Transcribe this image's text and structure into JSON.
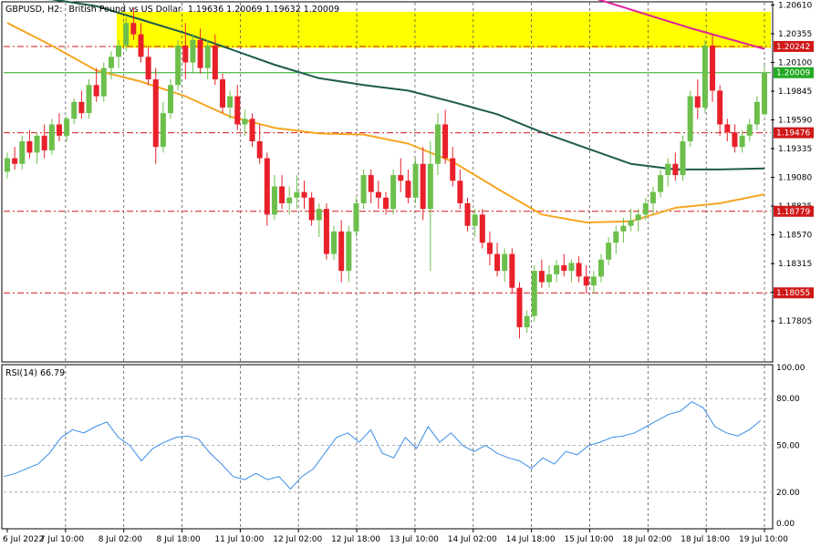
{
  "header": {
    "symbol": "GBPUSD, H2:",
    "description": "British Pound vs US Dollar",
    "ohlc": "1.19636 1.20069 1.19632 1.20009"
  },
  "rsi": {
    "label": "RSI(14) 66.79",
    "level_labels": [
      "100.00",
      "80.00",
      "50.00",
      "20.00",
      "0.00"
    ]
  },
  "colors": {
    "bull": "#6cbf4b",
    "bear": "#e8202a",
    "ma_slow": "#1f5a4e",
    "ma_fast": "#f5a623",
    "ma_top": "#e0209a",
    "zone": "#ffff00",
    "rsi": "#3a8ee6",
    "level_line": "#d01818",
    "price_line": "#22aa22"
  },
  "chart_data": [
    {
      "type": "candlestick",
      "title": "GBPUSD, H2: British Pound vs US Dollar",
      "ylim": [
        1.1745,
        1.2063
      ],
      "y_ticks": [
        "1.20610",
        "1.20355",
        "1.20100",
        "1.19845",
        "1.19590",
        "1.19335",
        "1.19080",
        "1.18825",
        "1.18570",
        "1.18315",
        "1.18060",
        "1.17805"
      ],
      "x_labels": [
        "6 Jul 2022",
        "7 Jul 10:00",
        "8 Jul 02:00",
        "8 Jul 18:00",
        "11 Jul 10:00",
        "12 Jul 02:00",
        "12 Jul 18:00",
        "13 Jul 10:00",
        "14 Jul 02:00",
        "14 Jul 18:00",
        "15 Jul 10:00",
        "18 Jul 02:00",
        "18 Jul 18:00",
        "19 Jul 10:00"
      ],
      "horizontal_levels": [
        {
          "value": 1.20242,
          "label": "1.20242"
        },
        {
          "value": 1.19476,
          "label": "1.19476"
        },
        {
          "value": 1.18779,
          "label": "1.18779"
        },
        {
          "value": 1.18055,
          "label": "1.18055"
        }
      ],
      "current_price": {
        "value": 1.20009,
        "label": "1.20009"
      },
      "resistance_zone": [
        1.2023,
        1.2055
      ],
      "candles": [
        [
          1.1913,
          1.193,
          1.1907,
          1.1925
        ],
        [
          1.1925,
          1.1935,
          1.1915,
          1.192
        ],
        [
          1.192,
          1.1945,
          1.1915,
          1.194
        ],
        [
          1.194,
          1.195,
          1.1925,
          1.193
        ],
        [
          1.193,
          1.1948,
          1.192,
          1.1945
        ],
        [
          1.1945,
          1.1955,
          1.1925,
          1.1932
        ],
        [
          1.1932,
          1.196,
          1.1928,
          1.1955
        ],
        [
          1.1955,
          1.1965,
          1.194,
          1.1945
        ],
        [
          1.1945,
          1.1962,
          1.194,
          1.196
        ],
        [
          1.196,
          1.1978,
          1.1955,
          1.1975
        ],
        [
          1.1975,
          1.1985,
          1.196,
          1.1965
        ],
        [
          1.1965,
          1.1995,
          1.196,
          1.199
        ],
        [
          1.199,
          1.2005,
          1.1975,
          1.198
        ],
        [
          1.198,
          1.201,
          1.1975,
          1.2005
        ],
        [
          1.2005,
          1.202,
          1.1995,
          1.2015
        ],
        [
          1.2015,
          1.203,
          1.2005,
          1.2025
        ],
        [
          1.2025,
          1.205,
          1.202,
          1.2045
        ],
        [
          1.2045,
          1.2058,
          1.203,
          1.2035
        ],
        [
          1.2035,
          1.2045,
          1.201,
          1.2015
        ],
        [
          1.2015,
          1.2025,
          1.199,
          1.1995
        ],
        [
          1.1995,
          1.2005,
          1.192,
          1.1935
        ],
        [
          1.1935,
          1.1975,
          1.193,
          1.1965
        ],
        [
          1.1965,
          1.1995,
          1.196,
          1.199
        ],
        [
          1.199,
          1.203,
          1.1985,
          1.2025
        ],
        [
          1.2025,
          1.2045,
          1.1995,
          1.201
        ],
        [
          1.201,
          1.2035,
          1.2,
          1.203
        ],
        [
          1.203,
          1.204,
          1.2,
          1.2005
        ],
        [
          1.2005,
          1.203,
          1.1995,
          1.2025
        ],
        [
          1.2025,
          1.2035,
          1.199,
          1.1995
        ],
        [
          1.1995,
          1.2,
          1.1965,
          1.197
        ],
        [
          1.197,
          1.1985,
          1.196,
          1.198
        ],
        [
          1.198,
          1.199,
          1.195,
          1.1955
        ],
        [
          1.1955,
          1.1968,
          1.1945,
          1.196
        ],
        [
          1.196,
          1.1965,
          1.1935,
          1.194
        ],
        [
          1.194,
          1.1955,
          1.192,
          1.1925
        ],
        [
          1.1925,
          1.193,
          1.1865,
          1.1875
        ],
        [
          1.1875,
          1.191,
          1.187,
          1.19
        ],
        [
          1.19,
          1.191,
          1.188,
          1.1885
        ],
        [
          1.1885,
          1.19,
          1.1875,
          1.189
        ],
        [
          1.189,
          1.191,
          1.188,
          1.1895
        ],
        [
          1.1895,
          1.1905,
          1.188,
          1.189
        ],
        [
          1.189,
          1.1895,
          1.1865,
          1.187
        ],
        [
          1.187,
          1.1885,
          1.1855,
          1.188
        ],
        [
          1.188,
          1.1885,
          1.1835,
          1.184
        ],
        [
          1.184,
          1.1865,
          1.1835,
          1.186
        ],
        [
          1.186,
          1.187,
          1.1815,
          1.1825
        ],
        [
          1.1825,
          1.1865,
          1.1815,
          1.186
        ],
        [
          1.186,
          1.189,
          1.1855,
          1.1885
        ],
        [
          1.1885,
          1.1915,
          1.188,
          1.191
        ],
        [
          1.191,
          1.1915,
          1.1885,
          1.1895
        ],
        [
          1.1895,
          1.1905,
          1.188,
          1.189
        ],
        [
          1.189,
          1.1895,
          1.1875,
          1.188
        ],
        [
          1.188,
          1.1915,
          1.1875,
          1.191
        ],
        [
          1.191,
          1.1925,
          1.1895,
          1.1905
        ],
        [
          1.1905,
          1.1915,
          1.1885,
          1.189
        ],
        [
          1.189,
          1.1925,
          1.1885,
          1.192
        ],
        [
          1.192,
          1.1935,
          1.187,
          1.188
        ],
        [
          1.188,
          1.194,
          1.1825,
          1.192
        ],
        [
          1.192,
          1.1965,
          1.191,
          1.1955
        ],
        [
          1.1955,
          1.1968,
          1.192,
          1.1925
        ],
        [
          1.1925,
          1.1935,
          1.19,
          1.1905
        ],
        [
          1.1905,
          1.1915,
          1.188,
          1.1885
        ],
        [
          1.1885,
          1.189,
          1.186,
          1.1865
        ],
        [
          1.1865,
          1.188,
          1.1855,
          1.1875
        ],
        [
          1.1875,
          1.188,
          1.1845,
          1.185
        ],
        [
          1.185,
          1.186,
          1.183,
          1.184
        ],
        [
          1.184,
          1.185,
          1.182,
          1.1825
        ],
        [
          1.1825,
          1.1845,
          1.1815,
          1.184
        ],
        [
          1.184,
          1.1845,
          1.1805,
          1.181
        ],
        [
          1.181,
          1.1815,
          1.1765,
          1.1775
        ],
        [
          1.1775,
          1.179,
          1.177,
          1.1785
        ],
        [
          1.1785,
          1.183,
          1.178,
          1.1825
        ],
        [
          1.1825,
          1.1835,
          1.181,
          1.1815
        ],
        [
          1.1815,
          1.183,
          1.181,
          1.1822
        ],
        [
          1.1822,
          1.1835,
          1.1815,
          1.183
        ],
        [
          1.183,
          1.184,
          1.182,
          1.1825
        ],
        [
          1.1825,
          1.1835,
          1.1815,
          1.1832
        ],
        [
          1.1832,
          1.1838,
          1.1815,
          1.182
        ],
        [
          1.182,
          1.183,
          1.1805,
          1.1812
        ],
        [
          1.1812,
          1.1825,
          1.1805,
          1.182
        ],
        [
          1.182,
          1.184,
          1.1815,
          1.1835
        ],
        [
          1.1835,
          1.1855,
          1.183,
          1.185
        ],
        [
          1.185,
          1.1865,
          1.184,
          1.186
        ],
        [
          1.186,
          1.1872,
          1.185,
          1.1865
        ],
        [
          1.1865,
          1.188,
          1.186,
          1.187
        ],
        [
          1.187,
          1.188,
          1.186,
          1.1875
        ],
        [
          1.1875,
          1.189,
          1.187,
          1.1885
        ],
        [
          1.1885,
          1.19,
          1.1875,
          1.1895
        ],
        [
          1.1895,
          1.1915,
          1.189,
          1.191
        ],
        [
          1.191,
          1.1925,
          1.19,
          1.192
        ],
        [
          1.192,
          1.193,
          1.1905,
          1.191
        ],
        [
          1.191,
          1.1945,
          1.1905,
          1.194
        ],
        [
          1.194,
          1.1985,
          1.1935,
          1.198
        ],
        [
          1.198,
          1.1995,
          1.196,
          1.197
        ],
        [
          1.197,
          1.203,
          1.1965,
          1.2025
        ],
        [
          1.2025,
          1.2035,
          1.1975,
          1.1985
        ],
        [
          1.1985,
          1.199,
          1.1945,
          1.1955
        ],
        [
          1.1955,
          1.196,
          1.194,
          1.1948
        ],
        [
          1.1948,
          1.1955,
          1.193,
          1.1935
        ],
        [
          1.1935,
          1.195,
          1.193,
          1.1945
        ],
        [
          1.1945,
          1.196,
          1.194,
          1.1955
        ],
        [
          1.1955,
          1.198,
          1.195,
          1.1975
        ],
        [
          1.1964,
          1.2007,
          1.1963,
          1.2001
        ]
      ],
      "ma_slow": [
        1.2068,
        1.2066,
        1.206,
        1.2048,
        1.2036,
        1.2022,
        1.2008,
        1.1996,
        1.199,
        1.1985,
        1.1975,
        1.1964,
        1.1948,
        1.1934,
        1.192,
        1.1915,
        1.1915,
        1.1916
      ],
      "ma_fast": [
        1.2045,
        1.2025,
        1.2003,
        1.1993,
        1.198,
        1.1962,
        1.1952,
        1.1947,
        1.1946,
        1.1938,
        1.1922,
        1.1898,
        1.1875,
        1.1868,
        1.1869,
        1.1881,
        1.1885,
        1.1893
      ],
      "ma_top": [
        1.208,
        1.206,
        1.204,
        1.2022
      ]
    },
    {
      "type": "line",
      "title": "RSI(14) 66.79",
      "ylim": [
        0,
        100
      ],
      "y_ticks": [
        "100.00",
        "80.00",
        "50.00",
        "20.00",
        "0.00"
      ],
      "series": [
        {
          "name": "RSI(14)",
          "values": [
            30,
            32,
            35,
            38,
            45,
            55,
            60,
            58,
            62,
            65,
            55,
            50,
            40,
            48,
            52,
            55,
            56,
            54,
            45,
            38,
            30,
            28,
            32,
            28,
            30,
            22,
            30,
            35,
            45,
            55,
            58,
            52,
            60,
            45,
            42,
            55,
            48,
            62,
            52,
            58,
            50,
            46,
            50,
            45,
            42,
            40,
            35,
            42,
            38,
            46,
            44,
            50,
            52,
            55,
            56,
            58,
            62,
            66,
            70,
            72,
            78,
            74,
            62,
            58,
            56,
            60,
            66
          ]
        }
      ]
    }
  ]
}
